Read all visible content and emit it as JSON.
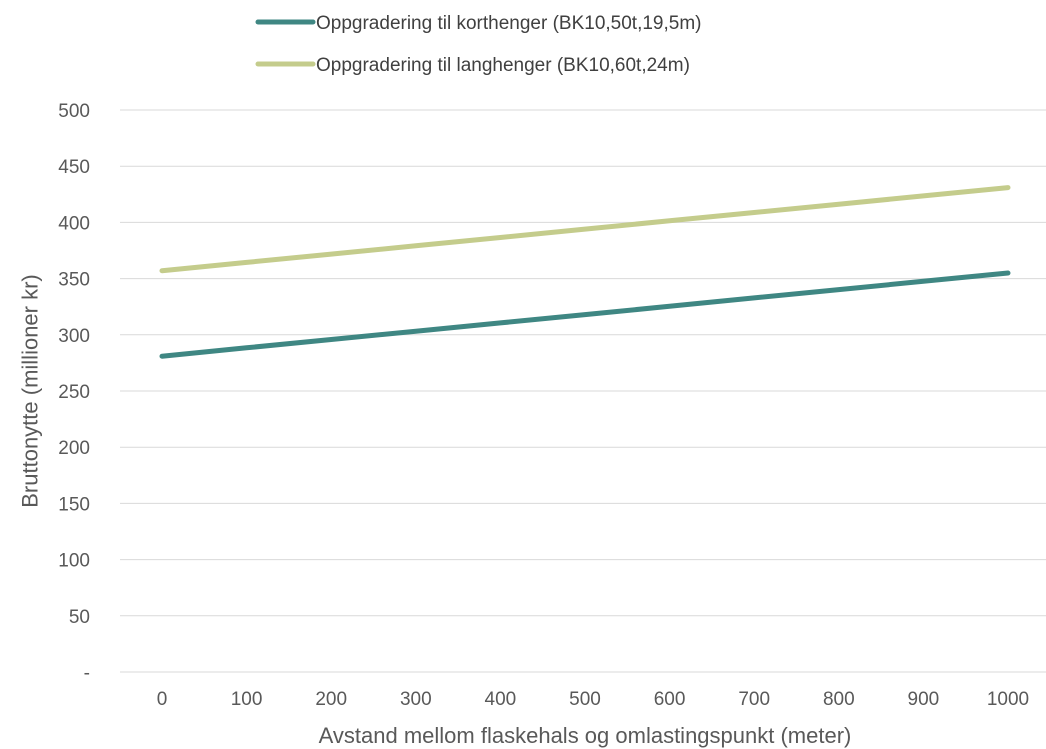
{
  "chart_data": {
    "type": "line",
    "x": [
      0,
      100,
      200,
      300,
      400,
      500,
      600,
      700,
      800,
      900,
      1000
    ],
    "x_tick_labels": [
      "0",
      "100",
      "200",
      "300",
      "400",
      "500",
      "600",
      "700",
      "800",
      "900",
      "1000"
    ],
    "series": [
      {
        "name": "Oppgradering til korthenger (BK10,50t,19,5m)",
        "color": "#3f8783",
        "values": [
          281,
          288.4,
          295.8,
          303.2,
          310.6,
          318,
          325.4,
          332.8,
          340.2,
          347.6,
          355
        ]
      },
      {
        "name": "Oppgradering til langhenger (BK10,60t,24m)",
        "color": "#c4cc8c",
        "values": [
          357,
          364.4,
          371.8,
          379.2,
          386.6,
          394,
          401.4,
          408.8,
          416.2,
          423.6,
          431
        ]
      }
    ],
    "ylim": [
      0,
      500
    ],
    "y_ticks": [
      0,
      50,
      100,
      150,
      200,
      250,
      300,
      350,
      400,
      450,
      500
    ],
    "y_tick_labels": [
      "-",
      "50",
      "100",
      "150",
      "200",
      "250",
      "300",
      "350",
      "400",
      "450",
      "500"
    ],
    "xlabel": "Avstand mellom flaskehals og omlastingspunkt (meter)",
    "ylabel": "Bruttonytte (millioner kr)",
    "grid": "horizontal",
    "legend_position": "top"
  }
}
